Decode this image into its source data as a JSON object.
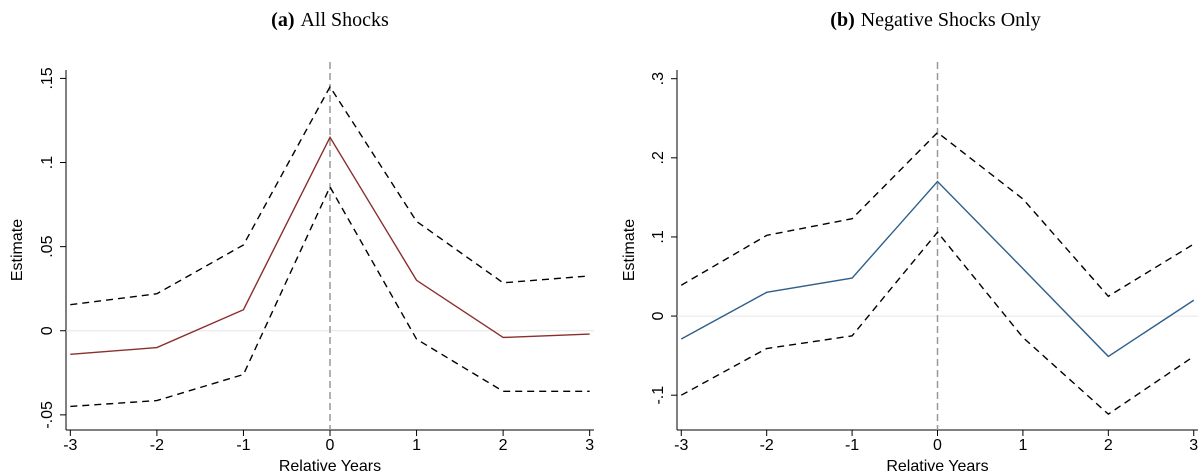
{
  "chart_data": [
    {
      "type": "line",
      "panel_label": "(a)",
      "title": "All Shocks",
      "x_label": "Relative Years",
      "y_label": "Estimate",
      "x": [
        -3,
        -2,
        -1,
        0,
        1,
        2,
        3
      ],
      "series": [
        {
          "color": "#8b2e2e",
          "dashed": false,
          "values": [
            -0.014,
            -0.01,
            0.0125,
            0.115,
            0.03,
            -0.004,
            -0.002
          ]
        },
        {
          "color": "#000000",
          "dashed": true,
          "values": [
            0.0155,
            0.022,
            0.051,
            0.145,
            0.065,
            0.0285,
            0.0326
          ]
        },
        {
          "color": "#000000",
          "dashed": true,
          "values": [
            -0.045,
            -0.0415,
            -0.026,
            0.0855,
            -0.005,
            -0.036,
            -0.036
          ]
        }
      ],
      "xlim": [
        -3.05,
        3.05
      ],
      "xticks": [
        -3,
        -2,
        -1,
        0,
        1,
        2,
        3
      ],
      "ylim": [
        -0.059,
        0.155
      ],
      "yticks": [
        {
          "value": -0.05,
          "label": "-.05"
        },
        0,
        {
          "value": 0.05,
          "label": ".05"
        },
        {
          "value": 0.1,
          "label": ".1"
        },
        {
          "value": 0.15,
          "label": ".15"
        }
      ],
      "vline": 0,
      "hline": 0
    },
    {
      "type": "line",
      "panel_label": "(b)",
      "title": "Negative Shocks Only",
      "x_label": "Relative Years",
      "y_label": "Estimate",
      "x": [
        -3,
        -2,
        -1,
        0,
        1,
        2,
        3
      ],
      "series": [
        {
          "color": "#2f5f8a",
          "dashed": false,
          "values": [
            -0.029,
            0.03,
            0.048,
            0.17,
            0.06,
            -0.051,
            0.02
          ]
        },
        {
          "color": "#000000",
          "dashed": true,
          "values": [
            0.039,
            0.102,
            0.123,
            0.232,
            0.148,
            0.025,
            0.091
          ]
        },
        {
          "color": "#000000",
          "dashed": true,
          "values": [
            -0.1,
            -0.041,
            -0.025,
            0.106,
            -0.027,
            -0.124,
            -0.051
          ]
        }
      ],
      "xlim": [
        -3.05,
        3.05
      ],
      "xticks": [
        -3,
        -2,
        -1,
        0,
        1,
        2,
        3
      ],
      "ylim": [
        -0.144,
        0.311
      ],
      "yticks": [
        {
          "value": -0.1,
          "label": "-.1"
        },
        0,
        {
          "value": 0.1,
          "label": ".1"
        },
        {
          "value": 0.2,
          "label": ".2"
        },
        {
          "value": 0.3,
          "label": ".3"
        }
      ],
      "vline": 0,
      "hline": 0
    }
  ]
}
